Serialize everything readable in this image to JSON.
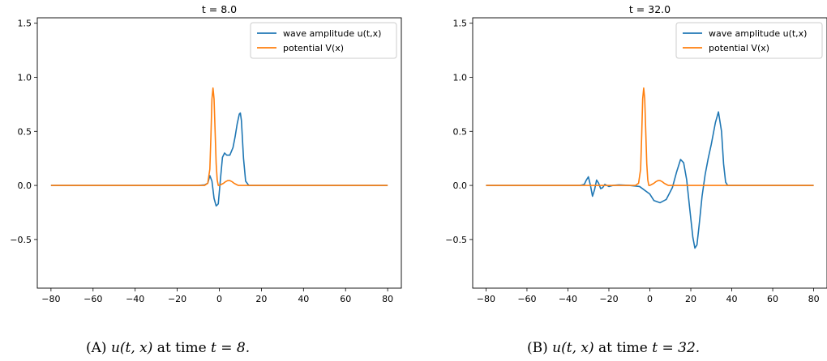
{
  "chart_data": [
    {
      "type": "line",
      "title": "t = 8.0",
      "xlim": [
        -86.5,
        86.5
      ],
      "ylim": [
        -0.95,
        1.55
      ],
      "xticks": [
        -80,
        -60,
        -40,
        -20,
        0,
        20,
        40,
        60,
        80
      ],
      "xtick_labels": [
        "−80",
        "−60",
        "−40",
        "−20",
        "0",
        "20",
        "40",
        "60",
        "80"
      ],
      "yticks": [
        -0.5,
        0.0,
        0.5,
        1.0,
        1.5
      ],
      "ytick_labels": [
        "−0.5",
        "0.0",
        "0.5",
        "1.0",
        "1.5"
      ],
      "grid": false,
      "legend_position": "top-right",
      "series": [
        {
          "name": "wave amplitude u(t,x)",
          "color": "#1f77b4",
          "x": [
            -80,
            -10,
            -7,
            -5.5,
            -4.5,
            -3.5,
            -2.5,
            -1.5,
            -0.5,
            0.5,
            1.5,
            2.5,
            3.5,
            5,
            6.5,
            7.5,
            8.5,
            9.5,
            10,
            10.5,
            11.5,
            12.5,
            14,
            20,
            80
          ],
          "y": [
            0,
            0,
            0.005,
            0.02,
            0.09,
            0.04,
            -0.12,
            -0.19,
            -0.17,
            0.05,
            0.26,
            0.3,
            0.28,
            0.28,
            0.35,
            0.45,
            0.57,
            0.66,
            0.67,
            0.6,
            0.25,
            0.04,
            0.0,
            0,
            0
          ]
        },
        {
          "name": "potential V(x)",
          "color": "#ff7f0e",
          "x": [
            -80,
            -7,
            -5.5,
            -4.5,
            -4,
            -3.5,
            -3,
            -2.5,
            -2,
            -1.5,
            -1,
            -0.5,
            0,
            1,
            2,
            3,
            4,
            5,
            6,
            7,
            8,
            9,
            80
          ],
          "y": [
            0,
            0,
            0.02,
            0.15,
            0.45,
            0.8,
            0.9,
            0.8,
            0.5,
            0.2,
            0.05,
            0.0,
            0.0,
            0.01,
            0.02,
            0.035,
            0.045,
            0.045,
            0.035,
            0.02,
            0.01,
            0.0,
            0
          ]
        }
      ]
    },
    {
      "type": "line",
      "title": "t = 32.0",
      "xlim": [
        -86.5,
        86.5
      ],
      "ylim": [
        -0.95,
        1.55
      ],
      "xticks": [
        -80,
        -60,
        -40,
        -20,
        0,
        20,
        40,
        60,
        80
      ],
      "xtick_labels": [
        "−80",
        "−60",
        "−40",
        "−20",
        "0",
        "20",
        "40",
        "60",
        "80"
      ],
      "yticks": [
        -0.5,
        0.0,
        0.5,
        1.0,
        1.5
      ],
      "ytick_labels": [
        "−0.5",
        "0.0",
        "0.5",
        "1.0",
        "1.5"
      ],
      "grid": false,
      "legend_position": "top-right",
      "series": [
        {
          "name": "wave amplitude u(t,x)",
          "color": "#1f77b4",
          "x": [
            -80,
            -34,
            -32,
            -31,
            -30,
            -29,
            -28,
            -27,
            -26,
            -25,
            -24,
            -23,
            -22,
            -21,
            -20,
            -18,
            -15,
            -10,
            -5,
            0,
            2,
            5,
            8,
            11,
            13,
            15,
            16.5,
            18,
            19.5,
            21,
            22,
            23,
            24,
            25.5,
            27,
            28.5,
            30,
            32,
            33.5,
            35,
            36,
            37,
            38,
            40,
            80
          ],
          "y": [
            0,
            0,
            0.01,
            0.05,
            0.08,
            0.0,
            -0.1,
            -0.04,
            0.05,
            0.02,
            -0.03,
            -0.02,
            0.01,
            0.0,
            -0.01,
            0.0,
            0.005,
            0.0,
            -0.01,
            -0.08,
            -0.14,
            -0.16,
            -0.13,
            -0.02,
            0.12,
            0.24,
            0.21,
            0.05,
            -0.22,
            -0.48,
            -0.58,
            -0.55,
            -0.38,
            -0.1,
            0.1,
            0.25,
            0.38,
            0.58,
            0.68,
            0.5,
            0.2,
            0.03,
            0.0,
            0,
            0
          ]
        },
        {
          "name": "potential V(x)",
          "color": "#ff7f0e",
          "x": [
            -80,
            -7,
            -5.5,
            -4.5,
            -4,
            -3.5,
            -3,
            -2.5,
            -2,
            -1.5,
            -1,
            -0.5,
            0,
            1,
            2,
            3,
            4,
            5,
            6,
            7,
            8,
            9,
            80
          ],
          "y": [
            0,
            0,
            0.02,
            0.15,
            0.45,
            0.8,
            0.9,
            0.8,
            0.5,
            0.2,
            0.05,
            0.0,
            0.0,
            0.01,
            0.02,
            0.035,
            0.045,
            0.045,
            0.035,
            0.02,
            0.01,
            0.0,
            0
          ]
        }
      ]
    }
  ],
  "captions": [
    {
      "label": "(A)",
      "math": "u(t, x)",
      "text_mid": " at time ",
      "math2": "t = 8."
    },
    {
      "label": "(B)",
      "math": "u(t, x)",
      "text_mid": " at time ",
      "math2": "t = 32."
    }
  ]
}
